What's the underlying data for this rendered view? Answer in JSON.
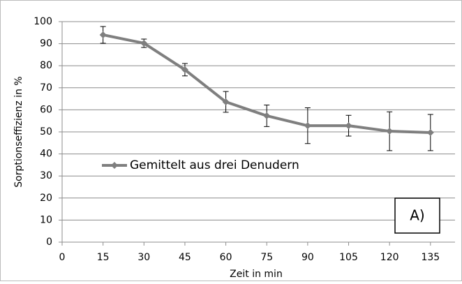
{
  "chart_data": {
    "type": "line",
    "x_label": "Zeit in min",
    "y_label": "Sorptionseffizienz in %",
    "x": [
      15,
      30,
      45,
      60,
      75,
      90,
      105,
      120,
      135
    ],
    "series": [
      {
        "name": "Gemittelt aus drei Denudern",
        "color": "#7f7f7f",
        "values": [
          94,
          90.2,
          78.2,
          63.6,
          57.3,
          52.8,
          52.8,
          50.3,
          49.7
        ],
        "errors": [
          3.8,
          1.9,
          2.8,
          4.7,
          4.9,
          8.1,
          4.7,
          8.8,
          8.2
        ]
      }
    ],
    "xlim": [
      0,
      144
    ],
    "xticks": [
      0,
      15,
      30,
      45,
      60,
      75,
      90,
      105,
      120,
      135
    ],
    "ylim": [
      0,
      100
    ],
    "yticks": [
      0,
      10,
      20,
      30,
      40,
      50,
      60,
      70,
      80,
      90,
      100
    ],
    "grid": true,
    "legend": "left",
    "annotation": "A)"
  }
}
